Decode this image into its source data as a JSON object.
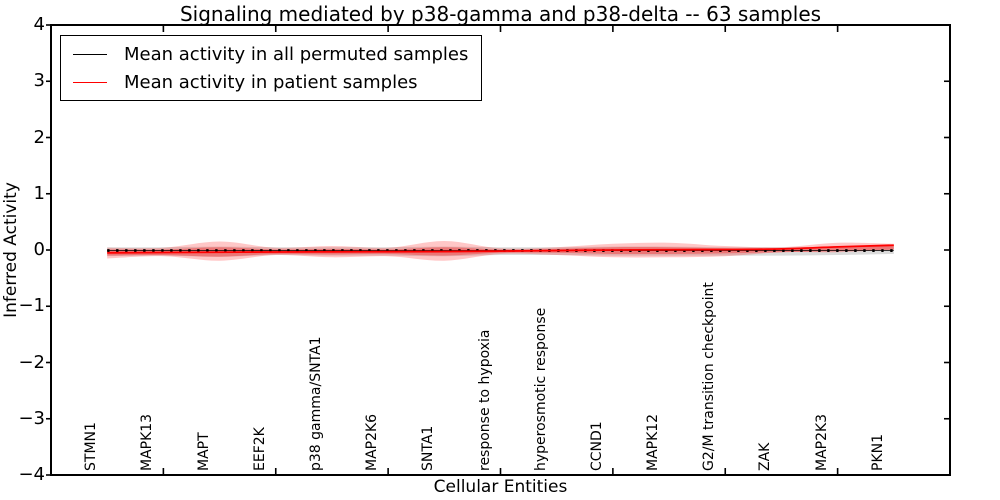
{
  "chart_data": {
    "type": "line",
    "title": "Signaling mediated by p38-gamma and p38-delta -- 63 samples",
    "xlabel": "Cellular Entities",
    "ylabel": "Inferred Activity",
    "xlim": [
      0,
      16
    ],
    "ylim": [
      -4,
      4
    ],
    "yticks": [
      4,
      3,
      2,
      1,
      0,
      -1,
      -2,
      -3,
      -4
    ],
    "xticks_unlabeled": [
      0,
      2,
      4,
      6,
      8,
      10,
      12,
      14,
      16
    ],
    "tick_direction": "in",
    "grid": false,
    "legend_position": "upper left",
    "categories": [
      "STMN1",
      "MAPK13",
      "MAPT",
      "EEF2K",
      "p38 gamma/SNTA1",
      "MAP2K6",
      "SNTA1",
      "response to hypoxia",
      "hyperosmotic response",
      "CCND1",
      "MAPK12",
      "G2/M transition checkpoint",
      "ZAK",
      "MAP2K3",
      "PKN1"
    ],
    "x": [
      1,
      2,
      3,
      4,
      5,
      6,
      7,
      8,
      9,
      10,
      11,
      12,
      13,
      14,
      15
    ],
    "series": [
      {
        "name": "Mean activity in all permuted samples",
        "color": "#000000",
        "style": "dotted-square-markers",
        "values": [
          -0.01,
          -0.01,
          -0.01,
          -0.01,
          -0.01,
          -0.01,
          -0.01,
          -0.01,
          -0.01,
          -0.01,
          -0.01,
          -0.01,
          -0.01,
          -0.01,
          -0.01
        ]
      },
      {
        "name": "Mean activity in patient samples",
        "color": "#ff0000",
        "style": "solid",
        "values": [
          -0.05,
          -0.045,
          -0.04,
          -0.035,
          -0.032,
          -0.03,
          -0.028,
          -0.02,
          -0.01,
          0.0,
          0.005,
          0.008,
          0.02,
          0.055,
          0.085
        ]
      }
    ],
    "bands": [
      {
        "name": "permuted samples std band",
        "color": "#999999",
        "opacity": 0.35,
        "upper": [
          0.05,
          0.05,
          0.06,
          0.05,
          0.05,
          0.05,
          0.06,
          0.05,
          0.05,
          0.06,
          0.06,
          0.05,
          0.05,
          0.06,
          0.08
        ],
        "lower": [
          -0.11,
          -0.1,
          -0.12,
          -0.09,
          -0.1,
          -0.1,
          -0.11,
          -0.09,
          -0.09,
          -0.1,
          -0.1,
          -0.1,
          -0.1,
          -0.09,
          -0.07
        ]
      },
      {
        "name": "patient samples std band outer",
        "color": "#ff0000",
        "opacity": 0.22,
        "upper": [
          0.04,
          0.04,
          0.15,
          0.04,
          0.07,
          0.04,
          0.16,
          0.03,
          0.05,
          0.11,
          0.13,
          0.07,
          0.05,
          0.13,
          0.11
        ],
        "lower": [
          -0.15,
          -0.11,
          -0.19,
          -0.09,
          -0.13,
          -0.11,
          -0.19,
          -0.07,
          -0.09,
          -0.13,
          -0.13,
          -0.11,
          -0.04,
          -0.04,
          0.01
        ]
      },
      {
        "name": "patient samples std band inner",
        "color": "#ff0000",
        "opacity": 0.3,
        "upper": [
          0.01,
          0.01,
          0.05,
          0.01,
          0.02,
          0.01,
          0.05,
          0.01,
          0.02,
          0.05,
          0.05,
          0.03,
          0.02,
          0.06,
          0.09
        ],
        "lower": [
          -0.1,
          -0.09,
          -0.12,
          -0.07,
          -0.08,
          -0.07,
          -0.1,
          -0.05,
          -0.05,
          -0.07,
          -0.07,
          -0.06,
          -0.04,
          -0.02,
          0.0
        ]
      }
    ]
  }
}
